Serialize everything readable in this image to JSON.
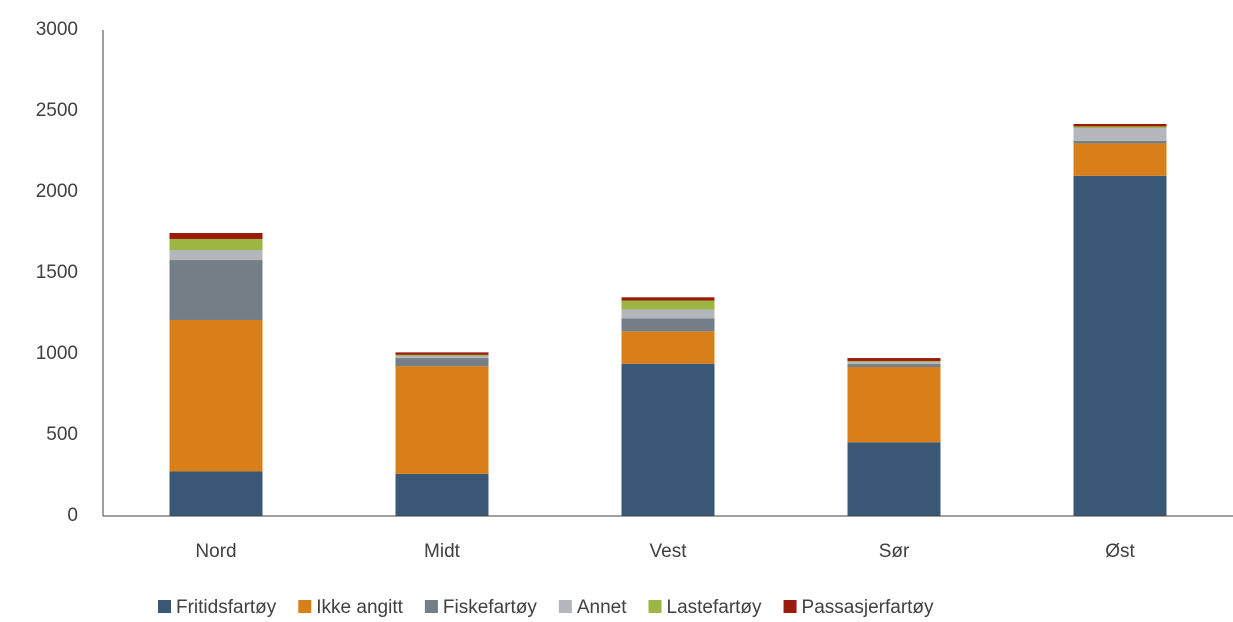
{
  "chart_data": {
    "type": "stacked_bar",
    "categories": [
      "Nord",
      "Midt",
      "Vest",
      "Sør",
      "Øst"
    ],
    "series": [
      {
        "name": "Fritidsfartøy",
        "color": "#3a5876",
        "values": [
          275,
          260,
          940,
          455,
          2100
        ]
      },
      {
        "name": "Ikke angitt",
        "color": "#d97f1a",
        "values": [
          935,
          665,
          200,
          465,
          200
        ]
      },
      {
        "name": "Fiskefartøy",
        "color": "#747e87",
        "values": [
          370,
          50,
          80,
          18,
          15
        ]
      },
      {
        "name": "Annet",
        "color": "#b3b7bb",
        "values": [
          62,
          12,
          55,
          12,
          80
        ]
      },
      {
        "name": "Lastefartøy",
        "color": "#9db543",
        "values": [
          68,
          8,
          55,
          7,
          10
        ]
      },
      {
        "name": "Passasjerfartøy",
        "color": "#9b1b0c",
        "values": [
          37,
          15,
          20,
          18,
          15
        ]
      }
    ],
    "ylim": [
      0,
      3000
    ],
    "yticks": [
      0,
      500,
      1000,
      1500,
      2000,
      2500,
      3000
    ],
    "grid": false,
    "legend": "bottom"
  }
}
